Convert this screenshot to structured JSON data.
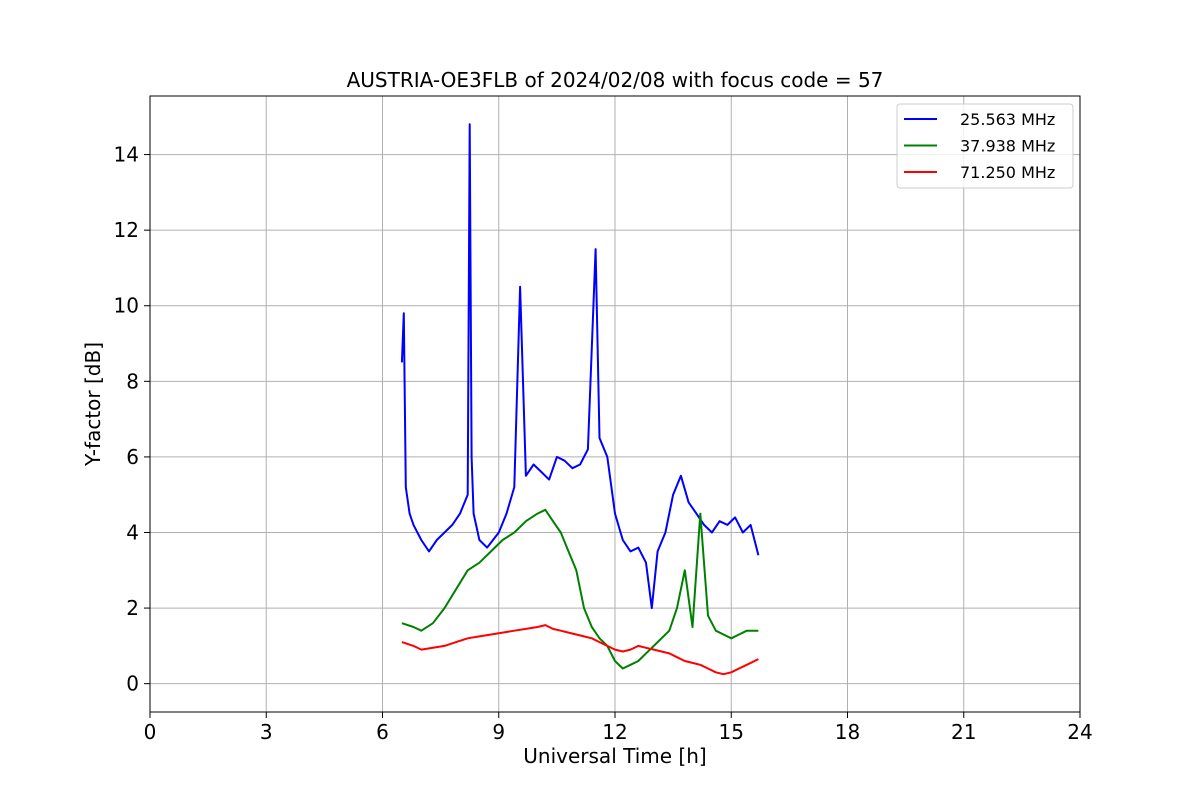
{
  "chart_data": {
    "type": "line",
    "title": "AUSTRIA-OE3FLB of 2024/02/08 with focus code = 57",
    "xlabel": "Universal Time [h]",
    "ylabel": "Y-factor [dB]",
    "xlim": [
      0,
      24
    ],
    "ylim": [
      -0.75,
      15.55
    ],
    "xticks": [
      0,
      3,
      6,
      9,
      12,
      15,
      18,
      21,
      24
    ],
    "yticks": [
      0,
      2,
      4,
      6,
      8,
      10,
      12,
      14
    ],
    "grid": true,
    "legend_position": "top-right",
    "series": [
      {
        "name": "25.563 MHz",
        "color": "#0000ff",
        "x": [
          6.5,
          6.55,
          6.6,
          6.7,
          6.8,
          7.0,
          7.2,
          7.4,
          7.6,
          7.8,
          8.0,
          8.2,
          8.25,
          8.3,
          8.35,
          8.5,
          8.7,
          9.0,
          9.2,
          9.4,
          9.55,
          9.7,
          9.9,
          10.1,
          10.3,
          10.5,
          10.7,
          10.9,
          11.1,
          11.3,
          11.5,
          11.6,
          11.8,
          12.0,
          12.2,
          12.4,
          12.6,
          12.8,
          12.95,
          13.1,
          13.3,
          13.5,
          13.7,
          13.9,
          14.1,
          14.3,
          14.5,
          14.7,
          14.9,
          15.1,
          15.3,
          15.5,
          15.7
        ],
        "y": [
          8.5,
          9.8,
          5.2,
          4.5,
          4.2,
          3.8,
          3.5,
          3.8,
          4.0,
          4.2,
          4.5,
          5.0,
          14.8,
          6.0,
          4.5,
          3.8,
          3.6,
          4.0,
          4.5,
          5.2,
          10.5,
          5.5,
          5.8,
          5.6,
          5.4,
          6.0,
          5.9,
          5.7,
          5.8,
          6.2,
          11.5,
          6.5,
          6.0,
          4.5,
          3.8,
          3.5,
          3.6,
          3.2,
          2.0,
          3.5,
          4.0,
          5.0,
          5.5,
          4.8,
          4.5,
          4.2,
          4.0,
          4.3,
          4.2,
          4.4,
          4.0,
          4.2,
          3.4
        ]
      },
      {
        "name": "37.938 MHz",
        "color": "#008000",
        "x": [
          6.5,
          6.8,
          7.0,
          7.3,
          7.6,
          7.9,
          8.2,
          8.5,
          8.8,
          9.1,
          9.4,
          9.7,
          10.0,
          10.2,
          10.4,
          10.6,
          10.8,
          11.0,
          11.2,
          11.4,
          11.6,
          11.8,
          12.0,
          12.2,
          12.4,
          12.6,
          12.8,
          13.0,
          13.2,
          13.4,
          13.6,
          13.8,
          14.0,
          14.2,
          14.4,
          14.6,
          14.8,
          15.0,
          15.2,
          15.4,
          15.7
        ],
        "y": [
          1.6,
          1.5,
          1.4,
          1.6,
          2.0,
          2.5,
          3.0,
          3.2,
          3.5,
          3.8,
          4.0,
          4.3,
          4.5,
          4.6,
          4.3,
          4.0,
          3.5,
          3.0,
          2.0,
          1.5,
          1.2,
          1.0,
          0.6,
          0.4,
          0.5,
          0.6,
          0.8,
          1.0,
          1.2,
          1.4,
          2.0,
          3.0,
          1.5,
          4.5,
          1.8,
          1.4,
          1.3,
          1.2,
          1.3,
          1.4,
          1.4
        ]
      },
      {
        "name": "71.250 MHz",
        "color": "#ff0000",
        "x": [
          6.5,
          6.8,
          7.0,
          7.3,
          7.6,
          7.9,
          8.2,
          8.5,
          8.8,
          9.1,
          9.4,
          9.7,
          10.0,
          10.2,
          10.4,
          10.6,
          10.8,
          11.0,
          11.2,
          11.4,
          11.6,
          11.8,
          12.0,
          12.2,
          12.4,
          12.6,
          12.8,
          13.0,
          13.2,
          13.4,
          13.6,
          13.8,
          14.0,
          14.2,
          14.4,
          14.6,
          14.8,
          15.0,
          15.2,
          15.4,
          15.7
        ],
        "y": [
          1.1,
          1.0,
          0.9,
          0.95,
          1.0,
          1.1,
          1.2,
          1.25,
          1.3,
          1.35,
          1.4,
          1.45,
          1.5,
          1.55,
          1.45,
          1.4,
          1.35,
          1.3,
          1.25,
          1.2,
          1.1,
          1.0,
          0.9,
          0.85,
          0.9,
          1.0,
          0.95,
          0.9,
          0.85,
          0.8,
          0.7,
          0.6,
          0.55,
          0.5,
          0.4,
          0.3,
          0.25,
          0.3,
          0.4,
          0.5,
          0.65
        ]
      }
    ]
  }
}
